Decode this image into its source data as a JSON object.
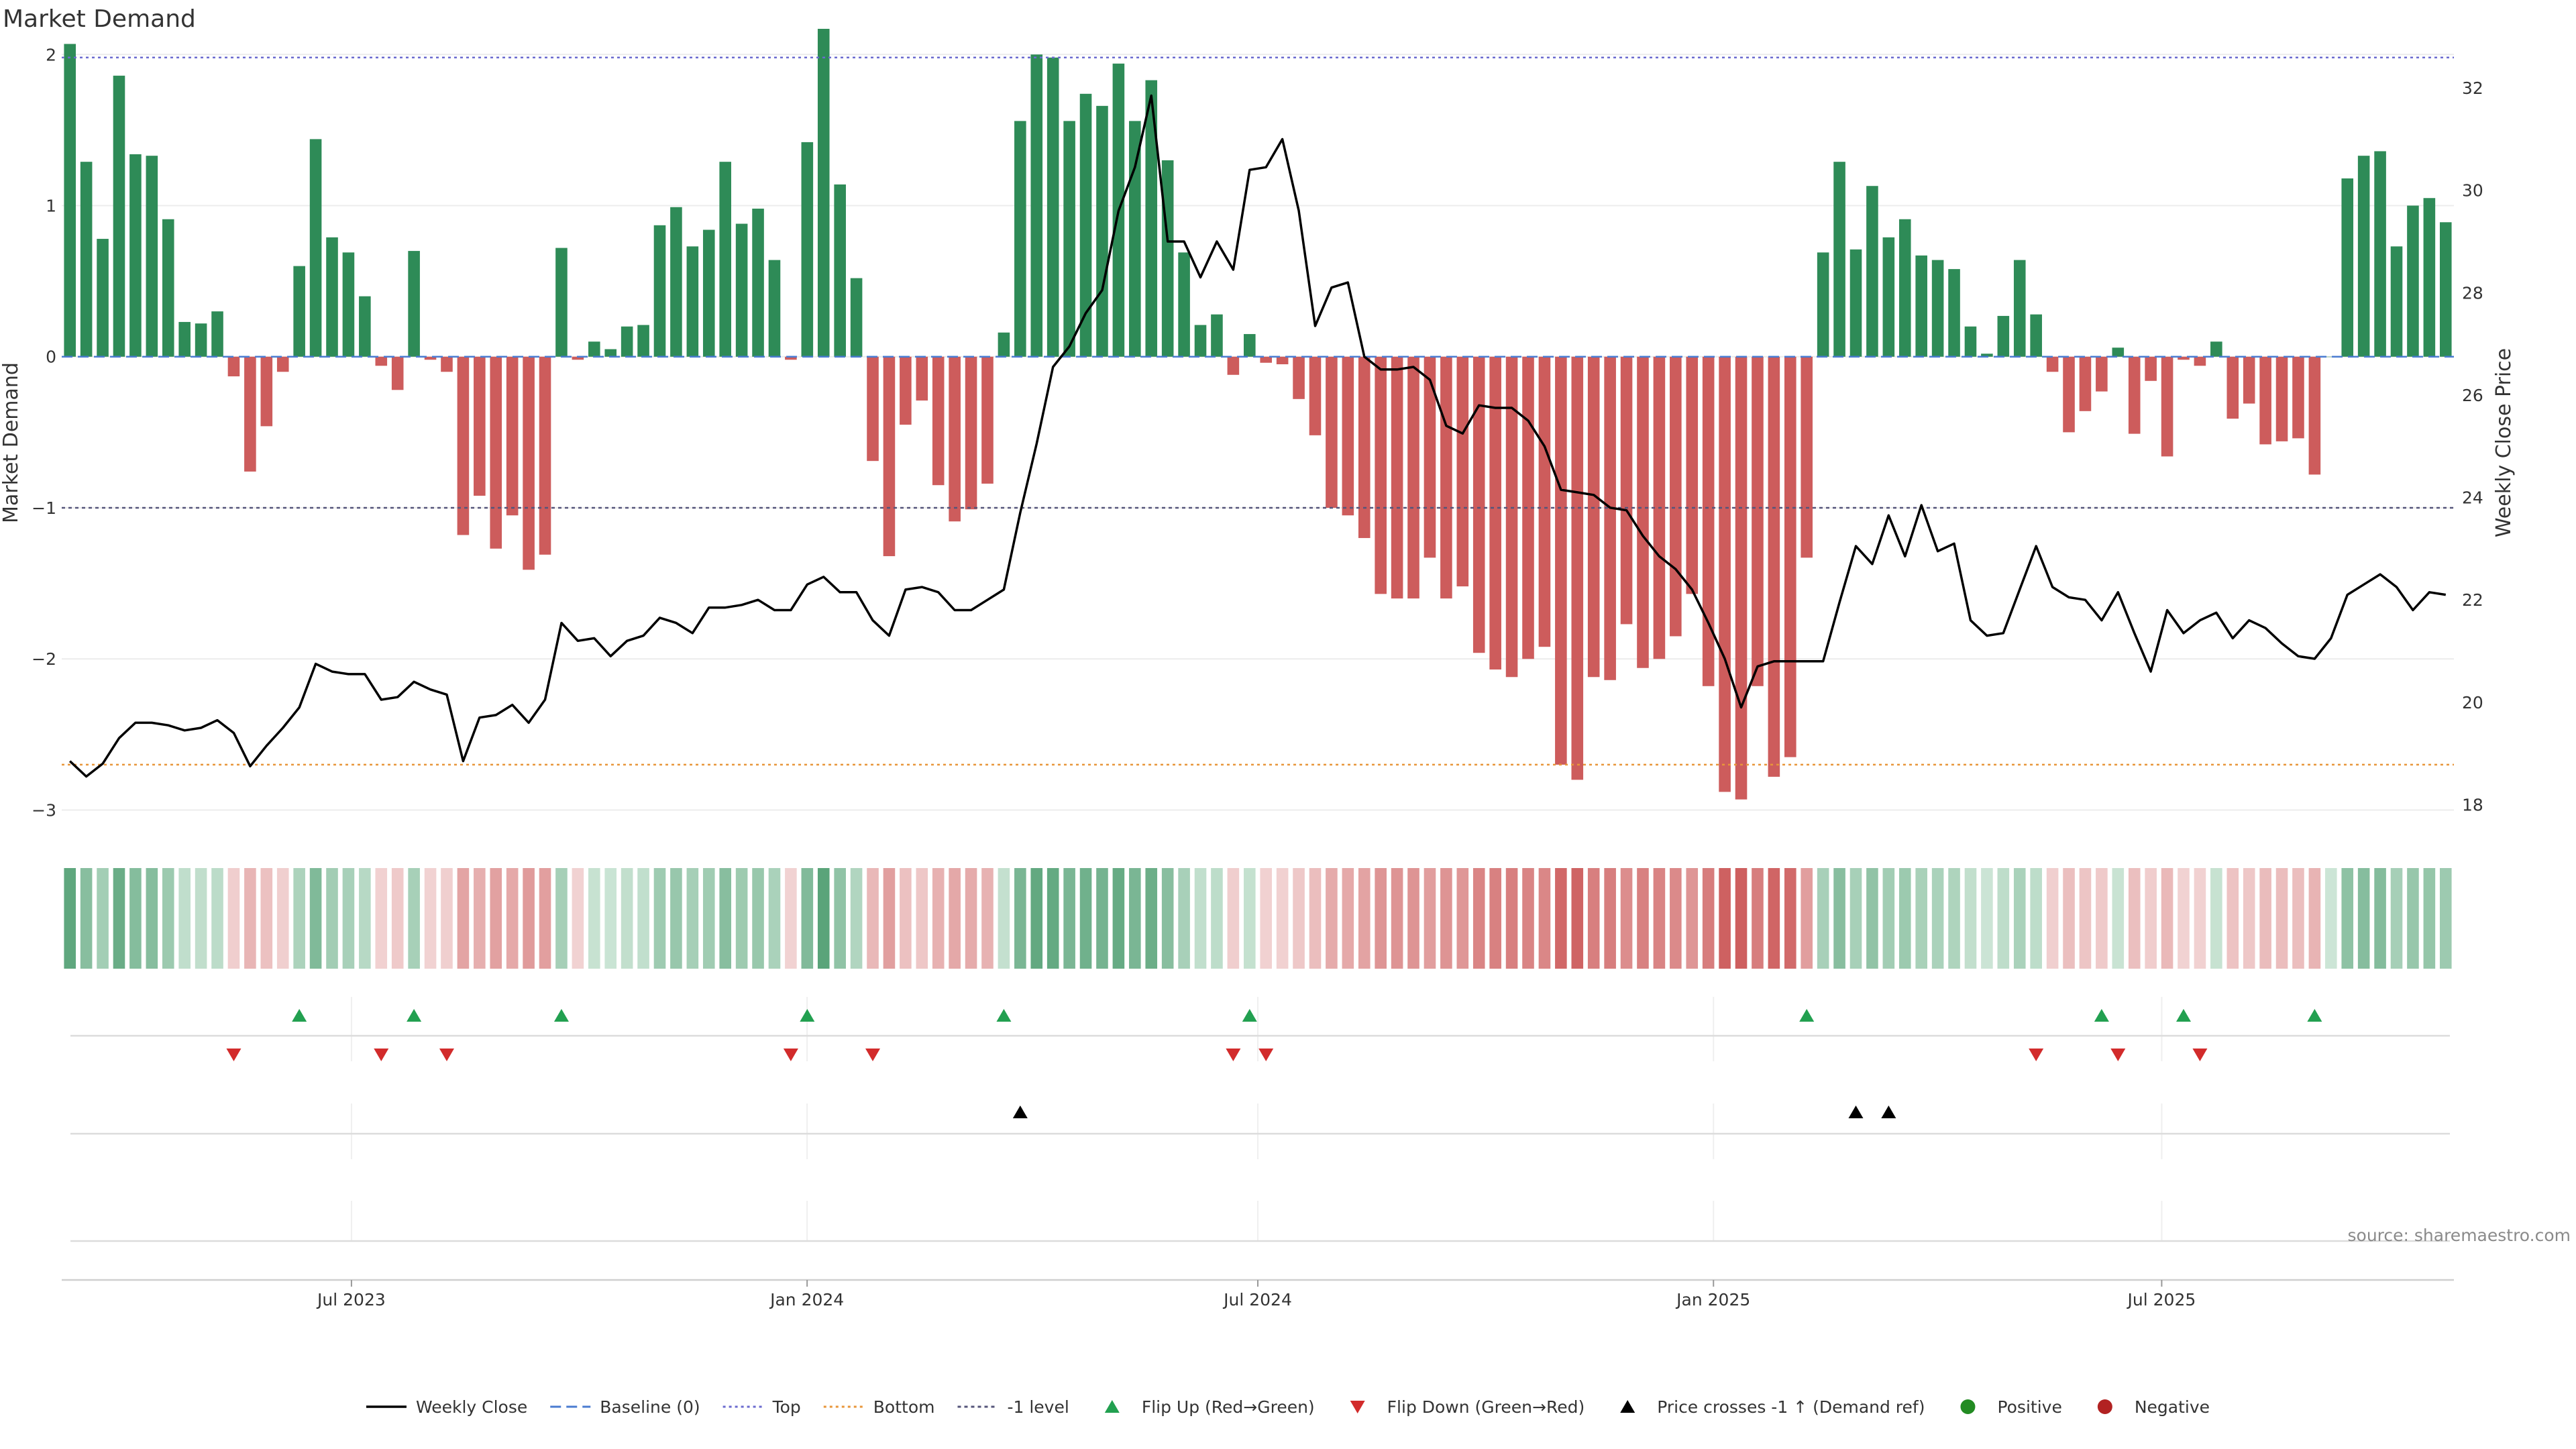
{
  "chart_data": {
    "type": "bar",
    "title": "Market Demand",
    "ylabel": "Market Demand",
    "y2label": "Weekly Close Price",
    "ylim": [
      -3.1,
      2.05
    ],
    "y_ticks": [
      2,
      1,
      0,
      -1,
      -2,
      -3
    ],
    "y_tick_labels": [
      "2",
      "1",
      "0",
      "−1",
      "−2",
      "−3"
    ],
    "y2lim": [
      17.6,
      32.8
    ],
    "y2_ticks": [
      32,
      30,
      28,
      26,
      24,
      22,
      20,
      18
    ],
    "y2_tick_labels": [
      "32",
      "30",
      "28",
      "26",
      "24",
      "22",
      "20",
      "18"
    ],
    "x_range": [
      "2023-03-06",
      "2025-10-27"
    ],
    "x_ticks": [
      {
        "date": "2023-07-01",
        "label": "Jul 2023"
      },
      {
        "date": "2024-01-01",
        "label": "Jan 2024"
      },
      {
        "date": "2024-07-01",
        "label": "Jul 2024"
      },
      {
        "date": "2025-01-01",
        "label": "Jan 2025"
      },
      {
        "date": "2025-07-01",
        "label": "Jul 2025"
      }
    ],
    "start_date": "2023-03-06",
    "reference_lines": {
      "top": 1.98,
      "minus_one": -1.0,
      "bottom": -2.7,
      "baseline": 0
    },
    "colors": {
      "positive": "#2e8b57",
      "negative": "#cd5c5c",
      "price": "#000000",
      "top": "#6b6bcf",
      "bottom": "#e8963a",
      "minus_one": "#55557a",
      "baseline": "#4a7bd0",
      "flip_up": "#22a050",
      "flip_down": "#d22b2b",
      "cross": "#000000",
      "positive_dot": "#228b22",
      "negative_dot": "#b22222"
    },
    "demand": [
      2.07,
      1.29,
      0.78,
      1.86,
      1.34,
      1.33,
      0.91,
      0.23,
      0.22,
      0.3,
      -0.13,
      -0.76,
      -0.46,
      -0.1,
      0.6,
      1.44,
      0.79,
      0.69,
      0.4,
      -0.06,
      -0.22,
      0.7,
      -0.02,
      -0.1,
      -1.18,
      -0.92,
      -1.27,
      -1.05,
      -1.41,
      -1.31,
      0.72,
      -0.02,
      0.1,
      0.05,
      0.2,
      0.21,
      0.87,
      0.99,
      0.73,
      0.84,
      1.29,
      0.88,
      0.98,
      0.64,
      -0.02,
      1.42,
      2.17,
      1.14,
      0.52,
      -0.69,
      -1.32,
      -0.45,
      -0.29,
      -0.85,
      -1.09,
      -1.01,
      -0.84,
      0.16,
      1.56,
      2.0,
      1.98,
      1.56,
      1.74,
      1.66,
      1.94,
      1.56,
      1.83,
      1.3,
      0.69,
      0.21,
      0.28,
      -0.12,
      0.15,
      -0.04,
      -0.05,
      -0.28,
      -0.52,
      -1.0,
      -1.05,
      -1.2,
      -1.57,
      -1.6,
      -1.6,
      -1.33,
      -1.6,
      -1.52,
      -1.96,
      -2.07,
      -2.12,
      -2.0,
      -1.92,
      -2.7,
      -2.8,
      -2.12,
      -2.14,
      -1.77,
      -2.06,
      -2.0,
      -1.85,
      -1.57,
      -2.18,
      -2.88,
      -2.93,
      -2.18,
      -2.78,
      -2.65,
      -1.33,
      0.69,
      1.29,
      0.71,
      1.13,
      0.79,
      0.91,
      0.67,
      0.64,
      0.58,
      0.2,
      0.02,
      0.27,
      0.64,
      0.28,
      -0.1,
      -0.5,
      -0.36,
      -0.23,
      0.06,
      -0.51,
      -0.16,
      -0.66,
      -0.02,
      -0.06,
      0.1,
      -0.41,
      -0.31,
      -0.58,
      -0.56,
      -0.54,
      -0.78,
      0,
      1.18,
      1.33,
      1.36,
      0.73,
      1.0,
      1.05,
      0.89
    ],
    "weekly_close": [
      18.85,
      18.55,
      18.8,
      19.3,
      19.6,
      19.6,
      19.55,
      19.45,
      19.5,
      19.65,
      19.4,
      18.75,
      19.15,
      19.5,
      19.9,
      20.75,
      20.6,
      20.55,
      20.55,
      20.05,
      20.1,
      20.4,
      20.25,
      20.15,
      18.85,
      19.7,
      19.75,
      19.95,
      19.6,
      20.05,
      21.55,
      21.2,
      21.25,
      20.9,
      21.2,
      21.3,
      21.65,
      21.55,
      21.35,
      21.85,
      21.85,
      21.9,
      22.0,
      21.8,
      21.8,
      22.3,
      22.45,
      22.15,
      22.15,
      21.6,
      21.3,
      22.2,
      22.25,
      22.15,
      21.8,
      21.8,
      22.0,
      22.2,
      23.7,
      25.05,
      26.55,
      26.95,
      27.6,
      28.05,
      29.6,
      30.45,
      31.85,
      29.0,
      29.0,
      28.3,
      29.0,
      28.45,
      30.4,
      30.45,
      31.0,
      29.6,
      27.35,
      28.1,
      28.2,
      26.75,
      26.5,
      26.5,
      26.55,
      26.3,
      25.4,
      25.25,
      25.8,
      25.75,
      25.75,
      25.5,
      25.0,
      24.15,
      24.1,
      24.05,
      23.8,
      23.75,
      23.25,
      22.85,
      22.6,
      22.2,
      21.55,
      20.85,
      19.9,
      20.7,
      20.8,
      20.8,
      20.8,
      20.8,
      21.95,
      23.05,
      22.7,
      23.65,
      22.85,
      23.85,
      22.95,
      23.1,
      21.6,
      21.3,
      21.35,
      22.2,
      23.05,
      22.25,
      22.05,
      22.0,
      21.6,
      22.15,
      21.35,
      20.6,
      21.8,
      21.35,
      21.6,
      21.75,
      21.25,
      21.6,
      21.45,
      21.15,
      20.9,
      20.85,
      21.25,
      22.1,
      22.3,
      22.5,
      22.25,
      21.8,
      22.15,
      22.1
    ],
    "flip_up_weeks": [
      14,
      21,
      30,
      45,
      57,
      72,
      106,
      124,
      129,
      137
    ],
    "flip_down_weeks": [
      10,
      19,
      23,
      44,
      49,
      71,
      73,
      120,
      125,
      130
    ],
    "price_cross_weeks": [
      58,
      109,
      111
    ],
    "source": "source: sharemaestro.com",
    "legend": [
      {
        "type": "line-solid",
        "label": "Weekly Close"
      },
      {
        "type": "line-dashed",
        "label": "Baseline (0)"
      },
      {
        "type": "line-dotted-top",
        "label": "Top"
      },
      {
        "type": "line-dotted-bottom",
        "label": "Bottom"
      },
      {
        "type": "line-dotted-minus",
        "label": "-1 level"
      },
      {
        "type": "tri-up-green",
        "label": "Flip Up (Red→Green)"
      },
      {
        "type": "tri-down-red",
        "label": "Flip Down (Green→Red)"
      },
      {
        "type": "tri-up-black",
        "label": "Price crosses -1 ↑ (Demand ref)"
      },
      {
        "type": "dot-green",
        "label": "Positive"
      },
      {
        "type": "dot-red",
        "label": "Negative"
      }
    ]
  }
}
